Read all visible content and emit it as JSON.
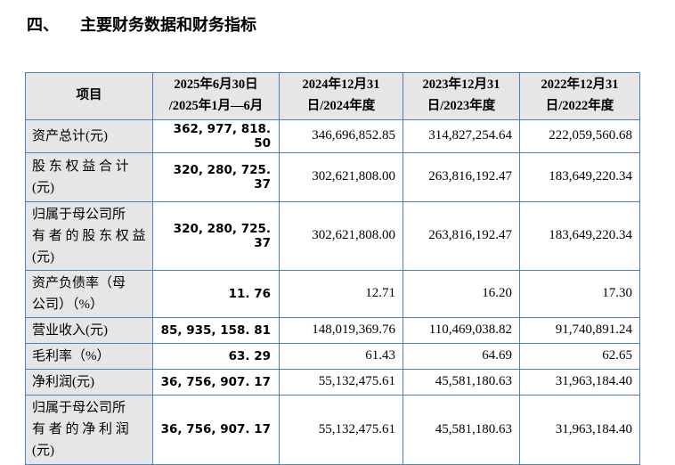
{
  "page": {
    "title_numeral": "四、",
    "title_text": "主要财务数据和财务指标"
  },
  "table": {
    "columns": [
      "项目",
      "2025年6月30日\n/2025年1月—6月",
      "2024年12月31\n日/2024年度",
      "2023年12月31\n日/2023年度",
      "2022年12月31\n日/2022年度"
    ],
    "rows": [
      {
        "label": "资产总计(元)",
        "values": [
          "362, 977, 818. 50",
          "346,696,852.85",
          "314,827,254.64",
          "222,059,560.68"
        ]
      },
      {
        "label": "股 东 权 益 合 计\n(元)",
        "values": [
          "320, 280, 725. 37",
          "302,621,808.00",
          "263,816,192.47",
          "183,649,220.34"
        ]
      },
      {
        "label": "归属于母公司所\n有 者 的 股 东 权 益\n(元)",
        "values": [
          "320, 280, 725. 37",
          "302,621,808.00",
          "263,816,192.47",
          "183,649,220.34"
        ]
      },
      {
        "label": "资产负债率（母\n公司）（%）",
        "values": [
          "11. 76",
          "12.71",
          "16.20",
          "17.30"
        ]
      },
      {
        "label": "营业收入(元)",
        "values": [
          "85, 935, 158. 81",
          "148,019,369.76",
          "110,469,038.82",
          "91,740,891.24"
        ]
      },
      {
        "label": "毛利率（%）",
        "values": [
          "63. 29",
          "61.43",
          "64.69",
          "62.65"
        ]
      },
      {
        "label": "净利润(元)",
        "values": [
          "36, 756, 907. 17",
          "55,132,475.61",
          "45,581,180.63",
          "31,963,184.40"
        ]
      },
      {
        "label": "归属于母公司所\n有 者 的 净 利 润\n(元)",
        "values": [
          "36, 756, 907. 17",
          "55,132,475.61",
          "45,581,180.63",
          "31,963,184.40"
        ]
      }
    ]
  }
}
